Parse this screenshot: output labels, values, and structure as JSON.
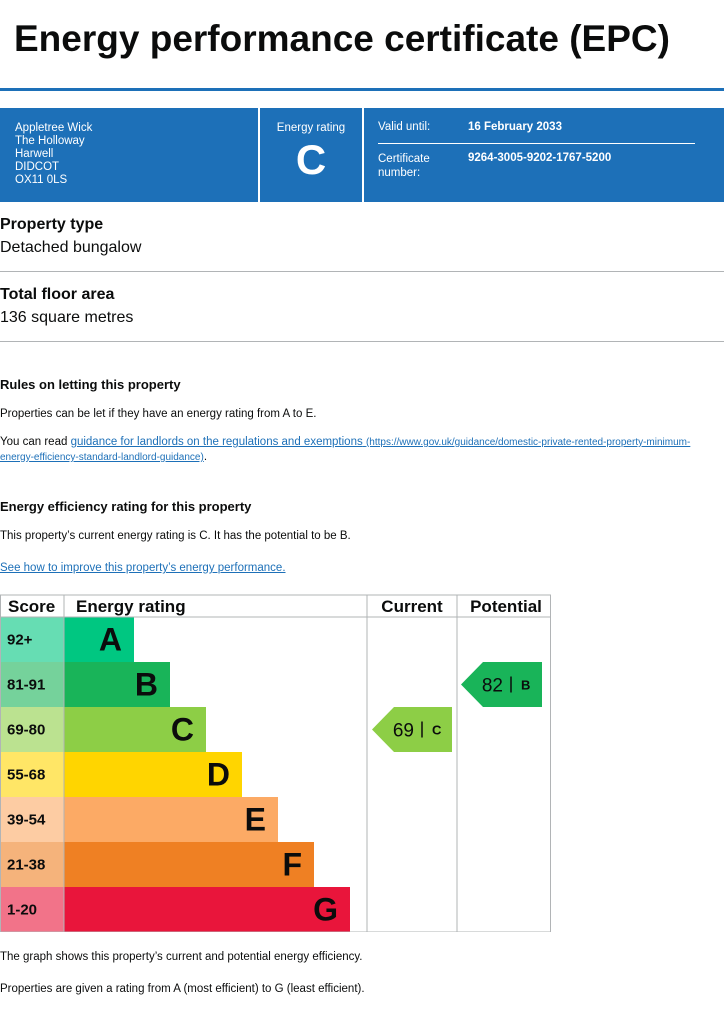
{
  "title": "Energy performance certificate (EPC)",
  "summary": {
    "address": [
      "Appletree Wick",
      "The Holloway",
      "Harwell",
      "DIDCOT",
      "OX11 0LS"
    ],
    "energy_rating_label": "Energy rating",
    "energy_rating": "C",
    "valid_until_label": "Valid until:",
    "valid_until": "16 February 2033",
    "certificate_number_label": "Certificate number:",
    "certificate_number": "9264-3005-9202-1767-5200"
  },
  "property_type": {
    "label": "Property type",
    "value": "Detached bungalow"
  },
  "floor_area": {
    "label": "Total floor area",
    "value": "136 square metres"
  },
  "rules": {
    "heading": "Rules on letting this property",
    "text": "Properties can be let if they have an energy rating from A to E.",
    "read_before": "You can read",
    "link_text": "guidance for landlords on the regulations and exemptions",
    "link_url": "(https://www.gov.uk/guidance/domestic-private-rented-property-minimum-energy-efficiency-standard-landlord-guidance)",
    "read_after": "."
  },
  "efficiency": {
    "heading": "Energy efficiency rating for this property",
    "text": "This property’s current energy rating is C. It has the potential to be B.",
    "link": "See how to improve this property’s energy performance."
  },
  "graph": {
    "headers": [
      "Score",
      "Energy rating",
      "Current",
      "Potential"
    ],
    "rows": [
      {
        "score": "92+",
        "band": "A",
        "color": "#00c781",
        "score_color": "#66ddb3"
      },
      {
        "score": "81-91",
        "band": "B",
        "color": "#19b459",
        "score_color": "#75d29b"
      },
      {
        "score": "69-80",
        "band": "C",
        "color": "#8dce46",
        "score_color": "#bbe290"
      },
      {
        "score": "55-68",
        "band": "D",
        "color": "#ffd500",
        "score_color": "#ffe666"
      },
      {
        "score": "39-54",
        "band": "E",
        "color": "#fcaa65",
        "score_color": "#fdcca3"
      },
      {
        "score": "21-38",
        "band": "F",
        "color": "#ef8023",
        "score_color": "#f5b37b"
      },
      {
        "score": "1-20",
        "band": "G",
        "color": "#e9153b",
        "score_color": "#f27389"
      }
    ],
    "current": {
      "value": 69,
      "band": "C"
    },
    "potential": {
      "value": 82,
      "band": "B"
    }
  },
  "footer": [
    "The graph shows this property’s current and potential energy efficiency.",
    "Properties are given a rating from A (most efficient) to G (least efficient)."
  ]
}
